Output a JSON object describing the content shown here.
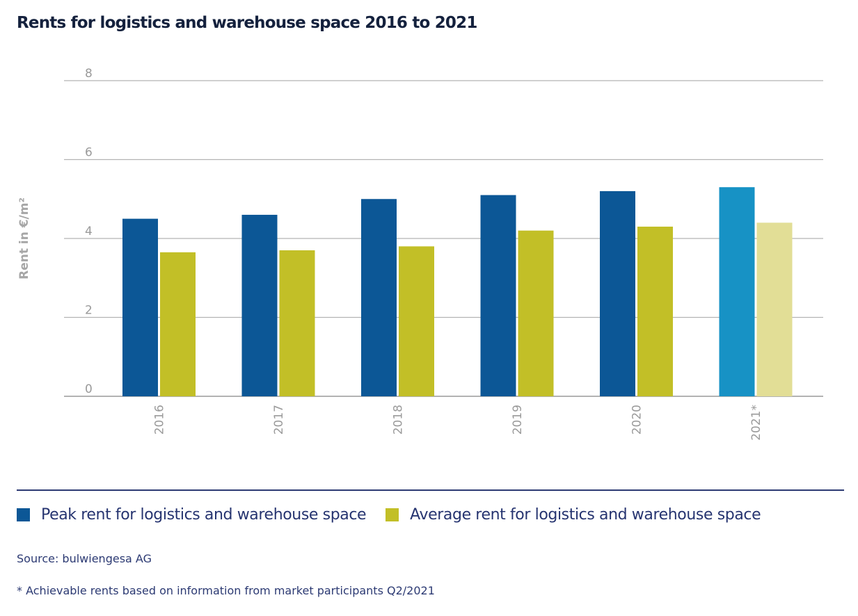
{
  "title": "Rents for logistics and warehouse space 2016 to 2021",
  "chart_data": {
    "type": "bar",
    "title": "Rents for logistics and warehouse space 2016 to 2021",
    "categories": [
      "2016",
      "2017",
      "2018",
      "2019",
      "2020",
      "2021*"
    ],
    "series": [
      {
        "name": "Peak rent for logistics and warehouse space",
        "values": [
          4.5,
          4.6,
          5.0,
          5.1,
          5.2,
          5.3
        ],
        "color": "#0c5796",
        "highlight_color": "#1792c5"
      },
      {
        "name": "Average rent for logistics and warehouse space",
        "values": [
          3.65,
          3.7,
          3.8,
          4.2,
          4.3,
          4.4
        ],
        "color": "#c2bf27",
        "highlight_color": "#e2de96"
      }
    ],
    "xlabel": "",
    "ylabel": "Rent in €/m²",
    "ylim": [
      0,
      8
    ],
    "yticks": [
      "0",
      "2",
      "4",
      "6",
      "8"
    ],
    "grid": true,
    "legend_position": "bottom"
  },
  "footer": {
    "source": "Source: bulwiengesa AG",
    "note": "* Achievable rents based on information from market participants Q2/2021"
  }
}
